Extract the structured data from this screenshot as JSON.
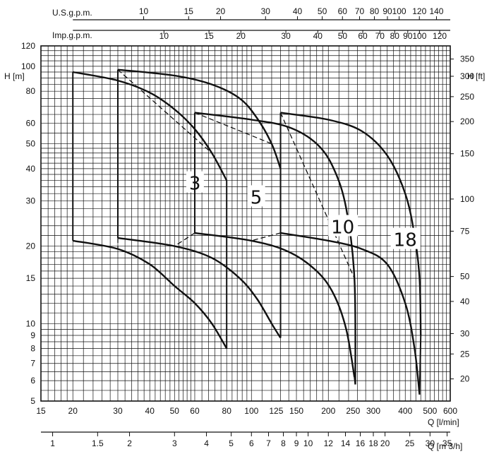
{
  "chart_data": {
    "type": "line",
    "title": "",
    "x_scale": "log",
    "y_scale": "log",
    "grid": true,
    "xlabel": "Q [l/min]",
    "x2label": "Q [m 3/h]",
    "x3label": "U.S.g.p.m.",
    "x4label": "Imp.g.p.m.",
    "ylabel_left": "H [m]",
    "ylabel_right": "H [ft]",
    "xlim": [
      15,
      600
    ],
    "ylim": [
      5,
      120
    ],
    "x_ticks": [
      15,
      20,
      30,
      40,
      50,
      60,
      80,
      100,
      125,
      150,
      200,
      250,
      300,
      400,
      500,
      600
    ],
    "x_tick_labels": [
      "15",
      "20",
      "30",
      "40",
      "50",
      "60",
      "80",
      "100",
      "125",
      "150",
      "200",
      "250",
      "300",
      "400",
      "500",
      "600"
    ],
    "y_ticks": [
      5,
      6,
      7,
      8,
      9,
      10,
      15,
      20,
      30,
      40,
      50,
      60,
      80,
      100,
      120
    ],
    "y_tick_labels": [
      "5",
      "6",
      "7",
      "8",
      "9",
      "10",
      "15",
      "20",
      "30",
      "40",
      "50",
      "60",
      "80",
      "100",
      "120"
    ],
    "ft_ticks": [
      20,
      25,
      30,
      40,
      50,
      75,
      100,
      150,
      200,
      250,
      300,
      350
    ],
    "ft_tick_labels": [
      "20",
      "25",
      "30",
      "40",
      "50",
      "75",
      "100",
      "150",
      "200",
      "250",
      "300",
      "350"
    ],
    "m3h_ticks": [
      1,
      1.5,
      2,
      3,
      4,
      5,
      6,
      7,
      8,
      9,
      10,
      12,
      14,
      16,
      18,
      20,
      25,
      30,
      35
    ],
    "m3h_tick_labels": [
      "1",
      "1.5",
      "2",
      "3",
      "4",
      "5",
      "6",
      "7",
      "8",
      "9",
      "10",
      "12",
      "14",
      "16",
      "18",
      "20",
      "25",
      "30",
      "35"
    ],
    "usgpm_ticks": [
      10,
      15,
      20,
      30,
      40,
      50,
      60,
      70,
      80,
      90,
      100,
      120,
      140
    ],
    "usgpm_tick_labels": [
      "10",
      "15",
      "20",
      "30",
      "40",
      "50",
      "60",
      "70",
      "80",
      "90",
      "100",
      "120",
      "140"
    ],
    "impgpm_ticks": [
      10,
      15,
      20,
      30,
      40,
      50,
      60,
      70,
      80,
      90,
      100,
      120
    ],
    "impgpm_tick_labels": [
      "10",
      "15",
      "20",
      "30",
      "40",
      "50",
      "60",
      "70",
      "80",
      "90",
      "100",
      "120"
    ],
    "series": [
      {
        "name": "3",
        "label_at": [
          57,
          34
        ],
        "upper": [
          [
            20,
            95
          ],
          [
            30,
            88
          ],
          [
            40,
            79
          ],
          [
            50,
            68
          ],
          [
            60,
            57
          ],
          [
            70,
            46
          ],
          [
            80,
            36
          ]
        ],
        "lower": [
          [
            20,
            21
          ],
          [
            30,
            19.5
          ],
          [
            40,
            17
          ],
          [
            50,
            14
          ],
          [
            60,
            12
          ],
          [
            70,
            10
          ],
          [
            80,
            8
          ]
        ]
      },
      {
        "name": "5",
        "label_at": [
          99,
          30
        ],
        "upper": [
          [
            30,
            97
          ],
          [
            50,
            92
          ],
          [
            70,
            85
          ],
          [
            90,
            75
          ],
          [
            105,
            63
          ],
          [
            120,
            50
          ],
          [
            130,
            40
          ]
        ],
        "lower": [
          [
            30,
            21.5
          ],
          [
            50,
            20
          ],
          [
            70,
            18
          ],
          [
            90,
            15
          ],
          [
            105,
            12.5
          ],
          [
            120,
            10
          ],
          [
            130,
            8.8
          ]
        ]
      },
      {
        "name": "10",
        "label_at": [
          205,
          23
        ],
        "upper": [
          [
            60,
            66
          ],
          [
            100,
            62
          ],
          [
            140,
            58
          ],
          [
            180,
            50
          ],
          [
            210,
            40
          ],
          [
            235,
            28
          ],
          [
            253,
            15
          ],
          [
            255,
            5.8
          ]
        ],
        "lower": [
          [
            60,
            22.5
          ],
          [
            100,
            21
          ],
          [
            140,
            19
          ],
          [
            180,
            16
          ],
          [
            210,
            13
          ],
          [
            235,
            9.5
          ],
          [
            253,
            6.2
          ]
        ]
      },
      {
        "name": "18",
        "label_at": [
          360,
          20.5
        ],
        "upper": [
          [
            130,
            66
          ],
          [
            200,
            62
          ],
          [
            270,
            56
          ],
          [
            340,
            45
          ],
          [
            400,
            32
          ],
          [
            435,
            22
          ],
          [
            455,
            15
          ],
          [
            460,
            9
          ]
        ],
        "lower": [
          [
            130,
            22.5
          ],
          [
            200,
            21
          ],
          [
            270,
            19.5
          ],
          [
            340,
            17
          ],
          [
            400,
            12
          ],
          [
            435,
            8
          ],
          [
            455,
            5.3
          ]
        ]
      }
    ]
  }
}
